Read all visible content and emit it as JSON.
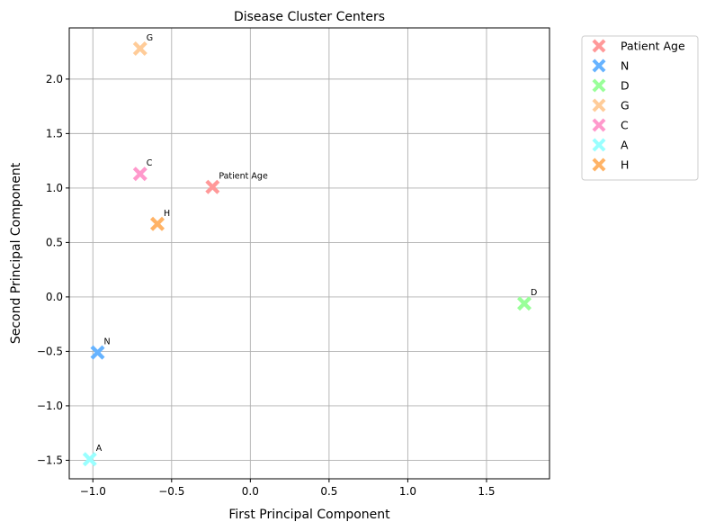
{
  "chart_data": {
    "type": "scatter",
    "title": "Disease Cluster Centers",
    "xlabel": "First Principal Component",
    "ylabel": "Second Principal Component",
    "xlim": [
      -1.15,
      1.9
    ],
    "ylim": [
      -1.67,
      2.47
    ],
    "xticks": [
      -1.0,
      -0.5,
      0.0,
      0.5,
      1.0,
      1.5
    ],
    "xtick_labels": [
      "−1.0",
      "−0.5",
      "0.0",
      "0.5",
      "1.0",
      "1.5"
    ],
    "yticks": [
      -1.5,
      -1.0,
      -0.5,
      0.0,
      0.5,
      1.0,
      1.5,
      2.0
    ],
    "ytick_labels": [
      "−1.5",
      "−1.0",
      "−0.5",
      "0.0",
      "0.5",
      "1.0",
      "1.5",
      "2.0"
    ],
    "grid": true,
    "legend_position": "outside-top-right",
    "marker": "X",
    "series": [
      {
        "name": "Patient Age",
        "x": -0.24,
        "y": 1.01,
        "color": "#ff9999"
      },
      {
        "name": "N",
        "x": -0.97,
        "y": -0.51,
        "color": "#66b3ff"
      },
      {
        "name": "D",
        "x": 1.74,
        "y": -0.06,
        "color": "#99ff99"
      },
      {
        "name": "G",
        "x": -0.7,
        "y": 2.28,
        "color": "#ffcc99"
      },
      {
        "name": "C",
        "x": -0.7,
        "y": 1.13,
        "color": "#ff99cc"
      },
      {
        "name": "A",
        "x": -1.02,
        "y": -1.49,
        "color": "#99ffff"
      },
      {
        "name": "H",
        "x": -0.59,
        "y": 0.67,
        "color": "#ffb366"
      }
    ]
  }
}
